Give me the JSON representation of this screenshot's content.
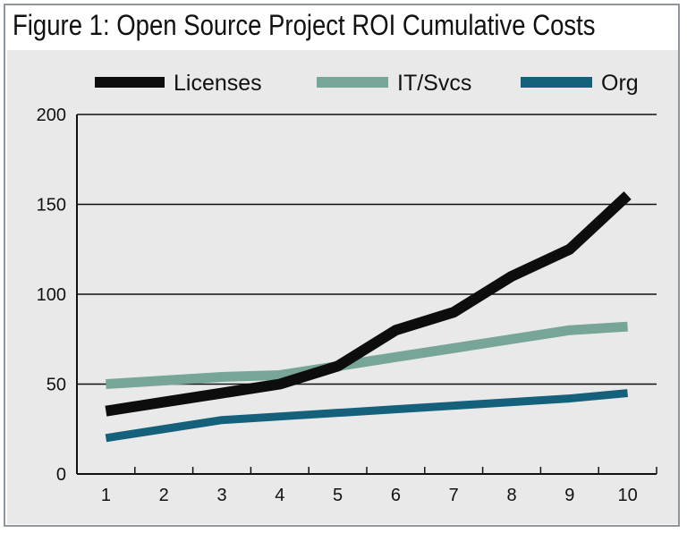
{
  "chart_data": {
    "type": "line",
    "title": "Figure 1: Open Source Project ROI Cumulative Costs",
    "xlabel": "",
    "ylabel": "",
    "x": [
      1,
      2,
      3,
      4,
      5,
      6,
      7,
      8,
      9,
      10
    ],
    "ylim": [
      0,
      200
    ],
    "yticks": [
      0,
      50,
      100,
      150,
      200
    ],
    "grid": true,
    "legend_position": "top",
    "series": [
      {
        "name": "Licenses",
        "color": "#0d0d0d",
        "values": [
          35,
          40,
          45,
          50,
          60,
          80,
          90,
          110,
          125,
          155
        ]
      },
      {
        "name": "IT/Svcs",
        "color": "#77a597",
        "values": [
          50,
          52,
          54,
          55,
          60,
          65,
          70,
          75,
          80,
          82
        ]
      },
      {
        "name": "Org",
        "color": "#15607a",
        "values": [
          20,
          25,
          30,
          32,
          34,
          36,
          38,
          40,
          42,
          45
        ]
      }
    ]
  }
}
